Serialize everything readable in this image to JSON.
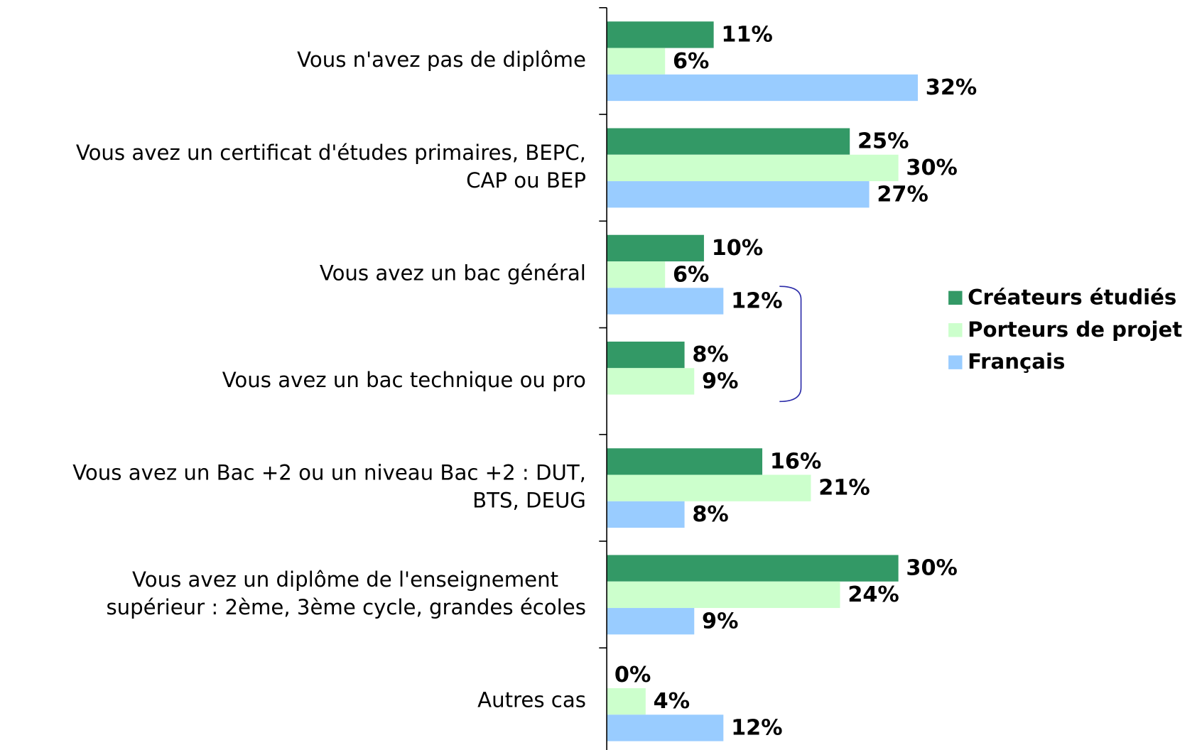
{
  "chart_data": {
    "type": "bar",
    "orientation": "horizontal",
    "categories": [
      [
        "Vous n'avez pas de diplôme"
      ],
      [
        "Vous avez un certificat d'études primaires, BEPC,",
        "CAP ou BEP"
      ],
      [
        "Vous avez un bac général"
      ],
      [
        "Vous avez un bac technique ou pro"
      ],
      [
        "Vous avez un Bac +2 ou un niveau Bac +2 : DUT,",
        "BTS, DEUG"
      ],
      [
        "Vous avez un diplôme de l'enseignement",
        "supérieur : 2ème, 3ème cycle, grandes écoles"
      ],
      [
        "Autres cas"
      ]
    ],
    "series": [
      {
        "name": "Créateurs étudiés",
        "color": "#339966",
        "values": [
          11,
          25,
          10,
          8,
          16,
          30,
          0
        ],
        "value_labels": [
          "11%",
          "25%",
          "10%",
          "8%",
          "16%",
          "30%",
          "0%"
        ]
      },
      {
        "name": "Porteurs de projet",
        "color": "#ccffcc",
        "values": [
          6,
          30,
          6,
          9,
          21,
          24,
          4
        ],
        "value_labels": [
          "6%",
          "30%",
          "6%",
          "9%",
          "21%",
          "24%",
          "4%"
        ]
      },
      {
        "name": "Français",
        "color": "#99ccff",
        "values": [
          32,
          27,
          12,
          null,
          8,
          9,
          12
        ],
        "value_labels": [
          "32%",
          "27%",
          "12%",
          null,
          "8%",
          "9%",
          "12%"
        ]
      }
    ],
    "xlim": [
      0,
      35
    ],
    "legend": "right"
  }
}
